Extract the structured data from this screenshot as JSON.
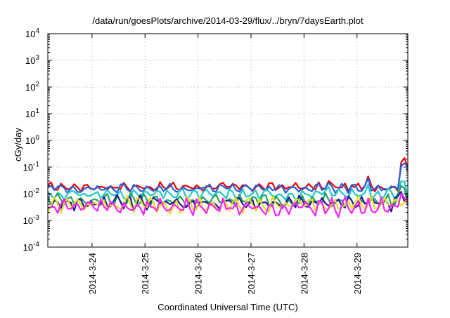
{
  "chart_data": {
    "type": "line",
    "title": "/data/run/goesPlots/archive/2014-03-29/flux/../bryn/7daysEarth.plot",
    "xlabel": "Coordinated Universal Time (UTC)",
    "ylabel": "cGy/day",
    "y_scale": "log",
    "ylim": [
      0.0001,
      10000
    ],
    "y_ticks": [
      {
        "base": "10",
        "exp": "-4"
      },
      {
        "base": "10",
        "exp": "-3"
      },
      {
        "base": "10",
        "exp": "-2"
      },
      {
        "base": "10",
        "exp": "-1"
      },
      {
        "base": "10",
        "exp": "0"
      },
      {
        "base": "10",
        "exp": "1"
      },
      {
        "base": "10",
        "exp": "2"
      },
      {
        "base": "10",
        "exp": "3"
      },
      {
        "base": "10",
        "exp": "4"
      }
    ],
    "xlim": [
      "2014-03-23 04:00",
      "2014-03-29 23:00"
    ],
    "x_ticks": [
      "2014-3-24",
      "2014-3-25",
      "2014-3-26",
      "2014-3-27",
      "2014-3-28",
      "2014-3-29"
    ],
    "grid": true,
    "samples_per_series": 110,
    "series": [
      {
        "color": "#ee0000",
        "base": 0.018,
        "amp": 0.32,
        "spikes": [
          [
            85,
            0.03
          ],
          [
            97,
            0.045
          ],
          [
            107,
            0.15
          ],
          [
            108,
            0.22
          ],
          [
            109,
            0.1
          ]
        ]
      },
      {
        "color": "#2060e0",
        "base": 0.016,
        "amp": 0.35,
        "spikes": [
          [
            85,
            0.026
          ],
          [
            97,
            0.038
          ],
          [
            107,
            0.11
          ],
          [
            108,
            0.14
          ],
          [
            109,
            0.1
          ]
        ]
      },
      {
        "color": "#20c8c8",
        "base": 0.0095,
        "amp": 0.4,
        "spikes": [
          [
            85,
            0.018
          ],
          [
            97,
            0.022
          ],
          [
            107,
            0.03
          ],
          [
            108,
            0.028
          ]
        ]
      },
      {
        "color": "#20a060",
        "base": 0.0055,
        "amp": 0.5,
        "spikes": [
          [
            107,
            0.02
          ],
          [
            108,
            0.016
          ]
        ]
      },
      {
        "color": "#202090",
        "base": 0.0045,
        "amp": 0.55,
        "spikes": [
          [
            107,
            0.012
          ]
        ]
      },
      {
        "color": "#e0e020",
        "base": 0.0038,
        "amp": 0.6,
        "spikes": []
      },
      {
        "color": "#ff20ff",
        "base": 0.0032,
        "amp": 0.65,
        "spikes": [
          [
            107,
            0.01
          ]
        ]
      }
    ]
  }
}
